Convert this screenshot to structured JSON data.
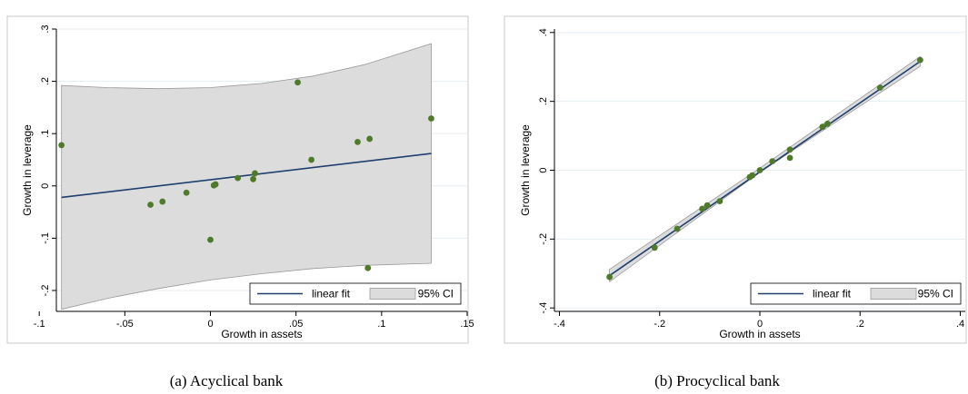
{
  "chart_data": [
    {
      "type": "scatter",
      "caption": "(a)  Acyclical bank",
      "xlabel": "Growth in assets",
      "ylabel": "Growth in leverage",
      "xlim": [
        -0.09,
        0.15
      ],
      "ylim": [
        -0.24,
        0.3
      ],
      "xticks": [
        -0.1,
        -0.05,
        0,
        0.05,
        0.1,
        0.15
      ],
      "xtick_labels": [
        "-.1",
        "-.05",
        "0",
        ".05",
        ".1",
        ".15"
      ],
      "yticks": [
        -0.2,
        -0.1,
        0,
        0.1,
        0.2,
        0.3
      ],
      "ytick_labels": [
        "-.2",
        "-.1",
        "0",
        ".1",
        ".2",
        ".3"
      ],
      "grid": true,
      "legend": {
        "position": "bottom-right",
        "entries": [
          "linear fit",
          "95% CI"
        ]
      },
      "fit": {
        "x": [
          -0.087,
          0.129
        ],
        "y": [
          -0.022,
          0.062
        ]
      },
      "ci_upper": {
        "x": [
          -0.087,
          -0.06,
          -0.03,
          0,
          0.03,
          0.06,
          0.09,
          0.129
        ],
        "y": [
          0.192,
          0.188,
          0.186,
          0.188,
          0.196,
          0.21,
          0.232,
          0.272
        ]
      },
      "ci_lower": {
        "x": [
          -0.087,
          -0.06,
          -0.03,
          0,
          0.03,
          0.06,
          0.09,
          0.129
        ],
        "y": [
          -0.236,
          -0.215,
          -0.196,
          -0.18,
          -0.168,
          -0.158,
          -0.152,
          -0.148
        ]
      },
      "points": {
        "x": [
          -0.087,
          -0.035,
          -0.028,
          -0.014,
          0,
          0.002,
          0.003,
          0.016,
          0.025,
          0.026,
          0.051,
          0.059,
          0.086,
          0.093,
          0.092,
          0.129
        ],
        "y": [
          0.078,
          -0.036,
          -0.03,
          -0.013,
          -0.103,
          0.001,
          0.003,
          0.015,
          0.013,
          0.024,
          0.198,
          0.05,
          0.084,
          0.09,
          -0.157,
          0.129
        ]
      },
      "colors": {
        "fit": "#1f3f6e",
        "ci": "#dcdcdc",
        "points": "#4e7a2a"
      }
    },
    {
      "type": "scatter",
      "caption": "(b)  Procyclical bank",
      "xlabel": "Growth in assets",
      "ylabel": "Growth in leverage",
      "xlim": [
        -0.41,
        0.41
      ],
      "ylim": [
        -0.41,
        0.41
      ],
      "xticks": [
        -0.4,
        -0.2,
        0,
        0.2,
        0.4
      ],
      "xtick_labels": [
        "-.4",
        "-.2",
        "0",
        ".2",
        ".4"
      ],
      "yticks": [
        -0.4,
        -0.2,
        0,
        0.2,
        0.4
      ],
      "ytick_labels": [
        "-.4",
        "-.2",
        "0",
        ".2",
        ".4"
      ],
      "grid": true,
      "legend": {
        "position": "bottom-right",
        "entries": [
          "linear fit",
          "95% CI"
        ]
      },
      "fit": {
        "x": [
          -0.3,
          0.32
        ],
        "y": [
          -0.306,
          0.316
        ]
      },
      "ci_upper": {
        "x": [
          -0.3,
          0,
          0.32
        ],
        "y": [
          -0.288,
          0.006,
          0.33
        ]
      },
      "ci_lower": {
        "x": [
          -0.3,
          0,
          0.32
        ],
        "y": [
          -0.324,
          -0.006,
          0.302
        ]
      },
      "points": {
        "x": [
          -0.3,
          -0.21,
          -0.165,
          -0.115,
          -0.105,
          -0.08,
          -0.02,
          -0.015,
          0,
          0.025,
          0.06,
          0.06,
          0.125,
          0.135,
          0.24,
          0.32
        ],
        "y": [
          -0.31,
          -0.225,
          -0.17,
          -0.112,
          -0.102,
          -0.09,
          -0.02,
          -0.015,
          0,
          0.026,
          0.06,
          0.036,
          0.126,
          0.135,
          0.24,
          0.32
        ]
      },
      "colors": {
        "fit": "#1f3f6e",
        "ci": "#dcdcdc",
        "points": "#4e7a2a"
      }
    }
  ]
}
